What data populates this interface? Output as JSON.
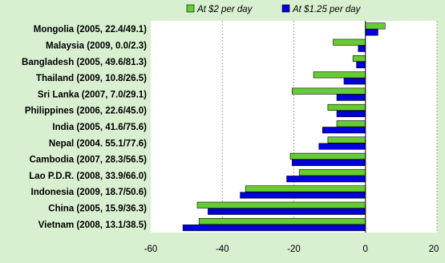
{
  "chart_data": {
    "type": "bar",
    "orientation": "horizontal",
    "categories": [
      "Mongolia (2005, 22.4/49.1)",
      "Malaysia (2009, 0.0/2.3)",
      "Bangladesh (2005, 49.6/81.3)",
      "Thailand (2009, 10.8/26.5)",
      "Sri Lanka (2007, 7.0/29.1)",
      "Philippines (2006, 22.6/45.0)",
      "India (2005, 41.6/75.6)",
      "Nepal (2004. 55.1/77.6)",
      "Cambodia (2007, 28.3/56.5)",
      "Lao P.D.R. (2008, 33.9/66.0)",
      "Indonesia (2009, 18.7/50.6)",
      "China (2005, 15.9/36.3)",
      "Vietnam (2008, 13.1/38.5)"
    ],
    "series": [
      {
        "name": "At $2 per day",
        "color": "#66cc33",
        "values": [
          5.5,
          -9,
          -3.5,
          -14.5,
          -20.5,
          -10.5,
          -8,
          -10.5,
          -21,
          -18.5,
          -33.5,
          -47,
          -46.5
        ]
      },
      {
        "name": "At $1.25 per day",
        "color": "#0000dd",
        "values": [
          3.5,
          -2,
          -2.5,
          -6,
          -8,
          -8,
          -12,
          -13,
          -20.5,
          -22,
          -35,
          -44,
          -51
        ]
      }
    ],
    "xlim": [
      -60,
      20
    ],
    "xticks": [
      -60,
      -40,
      -20,
      0,
      20
    ],
    "grid": "vertical dashed",
    "legend": "top"
  }
}
